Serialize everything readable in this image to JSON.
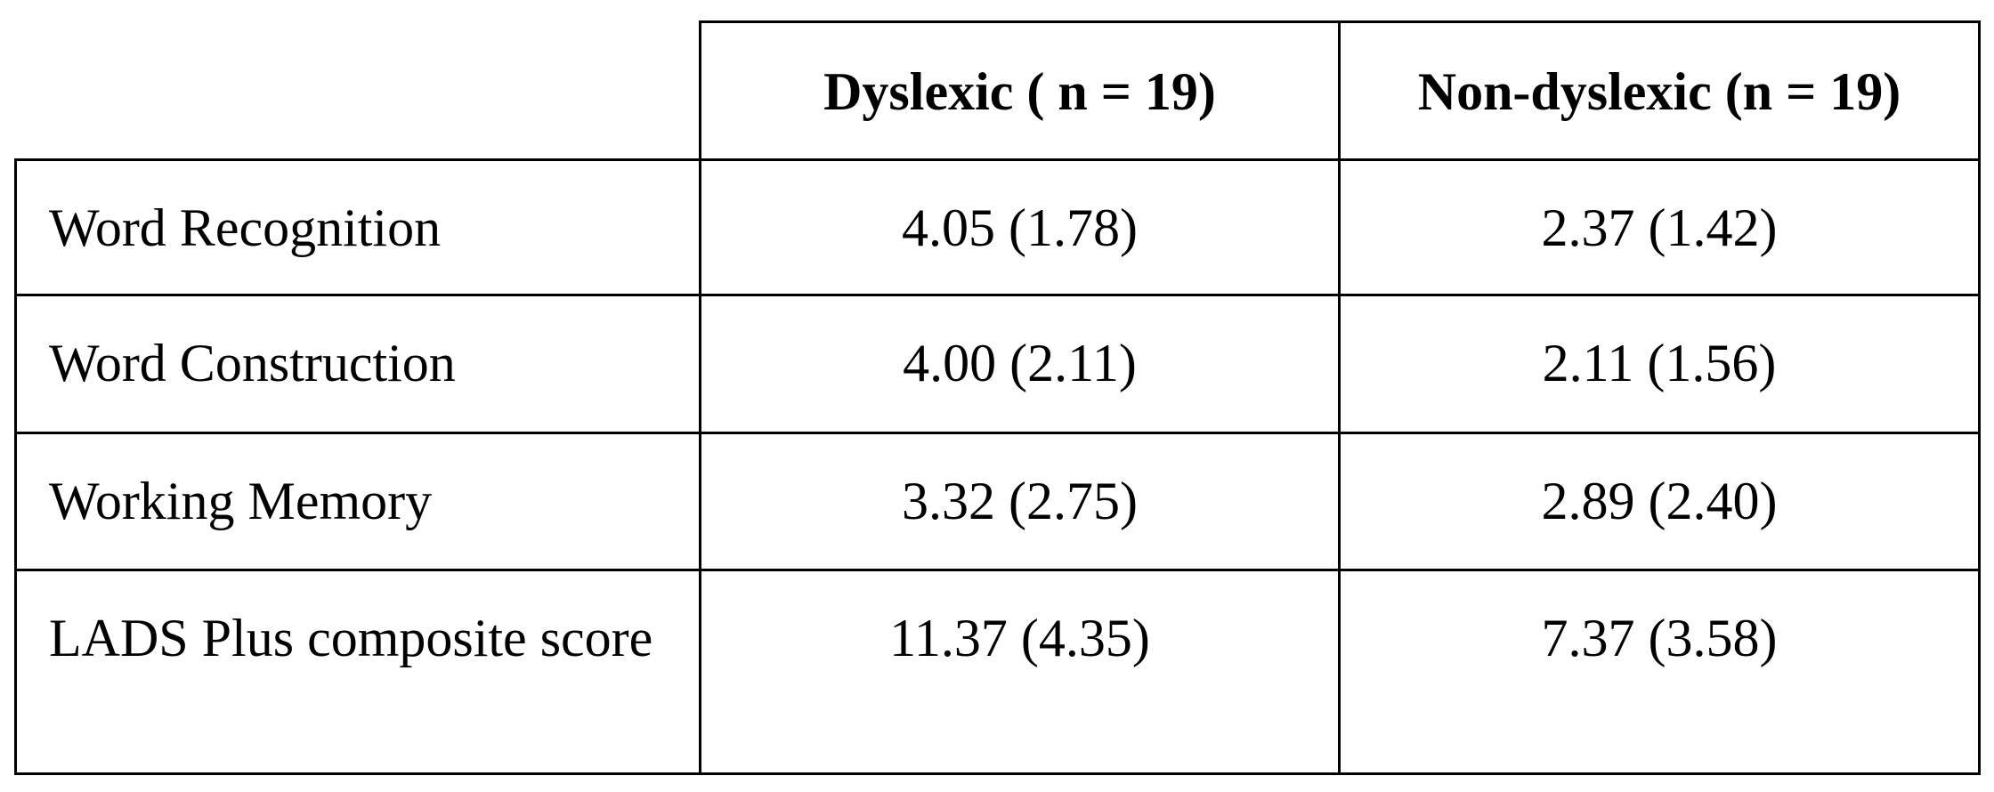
{
  "table": {
    "columns": [
      "Dyslexic ( n = 19)",
      "Non-dyslexic (n = 19)"
    ],
    "rows": [
      [
        "Word Recognition",
        "4.05 (1.78)",
        "2.37 (1.42)"
      ],
      [
        "Word Construction",
        "4.00 (2.11)",
        "2.11 (1.56)"
      ],
      [
        "Working Memory",
        "3.32 (2.75)",
        "2.89 (2.40)"
      ],
      [
        "LADS Plus composite score",
        "11.37 (4.35)",
        "7.37 (3.58)"
      ]
    ]
  }
}
